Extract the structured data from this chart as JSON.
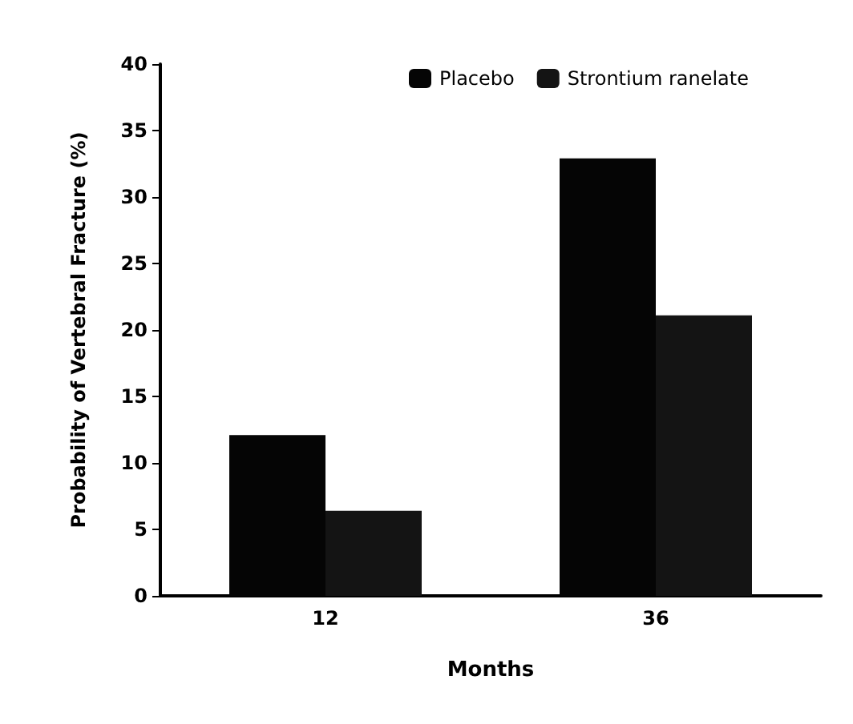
{
  "chart_data": {
    "type": "bar",
    "xlabel": "Months",
    "ylabel": "Probability of Vertebral Fracture (%)",
    "categories": [
      "12",
      "36"
    ],
    "series": [
      {
        "name": "Placebo",
        "color": "#050505",
        "values": [
          12.1,
          32.9
        ]
      },
      {
        "name": "Strontium ranelate",
        "color": "#141414",
        "values": [
          6.4,
          21.1
        ]
      }
    ],
    "ylim": [
      0,
      40
    ],
    "yticks": [
      0,
      5,
      10,
      15,
      20,
      25,
      30,
      35,
      40
    ],
    "grid": false,
    "legend": "top"
  }
}
